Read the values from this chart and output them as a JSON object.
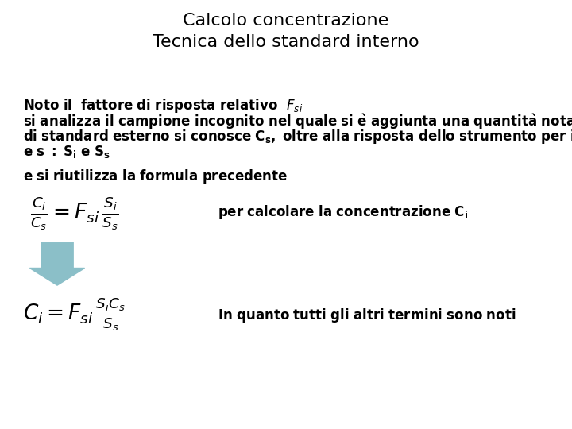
{
  "title": "Calcolo concentrazione\nTecnica dello standard interno",
  "title_fontsize": 16,
  "background_color": "#ffffff",
  "text_color": "#000000",
  "arrow_color": "#8bbfc8",
  "body_fontsize": 12,
  "formula_fontsize": 14,
  "note_fontsize": 12
}
